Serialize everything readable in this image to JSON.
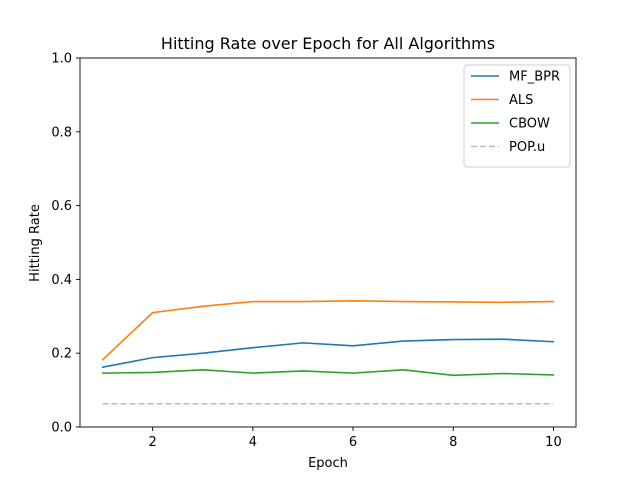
{
  "chart_data": {
    "type": "line",
    "title": "Hitting Rate over Epoch for All Algorithms",
    "xlabel": "Epoch",
    "ylabel": "Hitting Rate",
    "x": [
      1,
      2,
      3,
      4,
      5,
      6,
      7,
      8,
      9,
      10
    ],
    "xlim": [
      0.55,
      10.45
    ],
    "ylim": [
      0.0,
      1.0
    ],
    "xticks": [
      2,
      4,
      6,
      8,
      10
    ],
    "xtick_labels": [
      "2",
      "4",
      "6",
      "8",
      "10"
    ],
    "yticks": [
      0.0,
      0.2,
      0.4,
      0.6,
      0.8,
      1.0
    ],
    "ytick_labels": [
      "0.0",
      "0.2",
      "0.4",
      "0.6",
      "0.8",
      "1.0"
    ],
    "grid": false,
    "legend_position": "top-right",
    "series": [
      {
        "name": "MF_BPR",
        "color": "#1f77b4",
        "style": "solid",
        "values": [
          0.162,
          0.188,
          0.2,
          0.215,
          0.228,
          0.22,
          0.233,
          0.237,
          0.238,
          0.231
        ]
      },
      {
        "name": "ALS",
        "color": "#ff7f0e",
        "style": "solid",
        "values": [
          0.182,
          0.31,
          0.327,
          0.34,
          0.34,
          0.342,
          0.34,
          0.339,
          0.338,
          0.34
        ]
      },
      {
        "name": "CBOW",
        "color": "#2ca02c",
        "style": "solid",
        "values": [
          0.146,
          0.148,
          0.155,
          0.146,
          0.152,
          0.146,
          0.155,
          0.14,
          0.145,
          0.141
        ]
      },
      {
        "name": "POP.u",
        "color": "#bbbbbb",
        "style": "dashed",
        "values": [
          0.063,
          0.063,
          0.063,
          0.063,
          0.063,
          0.063,
          0.063,
          0.063,
          0.063,
          0.063
        ]
      }
    ]
  }
}
